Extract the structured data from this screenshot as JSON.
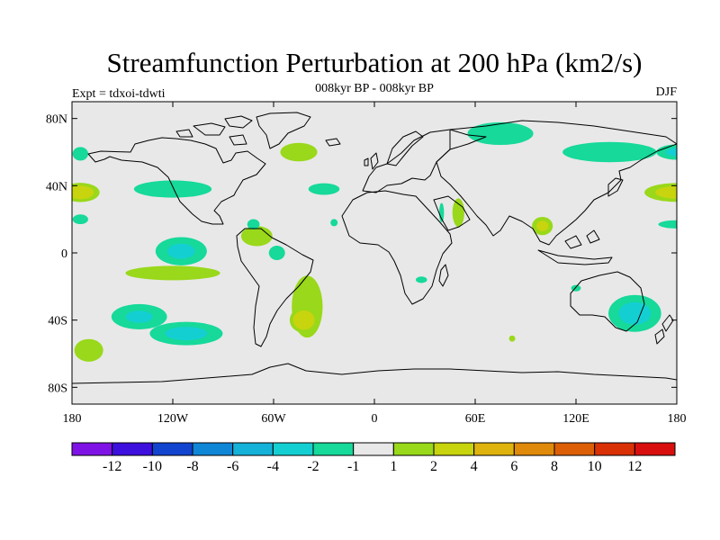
{
  "header": {
    "title": "Streamfunction Perturbation at 200 hPa (km2/s)",
    "subtitle": "008kyr BP - 008kyr BP",
    "left_label": "Expt = tdxoi-tdwti",
    "right_label": "DJF"
  },
  "map": {
    "projection": "cylindrical-equidistant",
    "lon_range": [
      -180,
      180
    ],
    "lat_range": [
      -90,
      90
    ],
    "background_color": "#e8e8e8",
    "lat_ticks": [
      {
        "value": 80,
        "label": "80N"
      },
      {
        "value": 40,
        "label": "40N"
      },
      {
        "value": 0,
        "label": "0"
      },
      {
        "value": -40,
        "label": "40S"
      },
      {
        "value": -80,
        "label": "80S"
      }
    ],
    "lon_ticks": [
      {
        "value": -180,
        "label": "180"
      },
      {
        "value": -120,
        "label": "120W"
      },
      {
        "value": -60,
        "label": "60W"
      },
      {
        "value": 0,
        "label": "0"
      },
      {
        "value": 60,
        "label": "60E"
      },
      {
        "value": 120,
        "label": "120E"
      },
      {
        "value": 180,
        "label": "180"
      }
    ],
    "anomalies": [
      {
        "lon": -140,
        "lat": -38,
        "rlon": 22,
        "rlat": 10,
        "value": -2.3
      },
      {
        "lon": -112,
        "lat": -48,
        "rlon": 28,
        "rlat": 9,
        "value": -2.5
      },
      {
        "lon": -115,
        "lat": 1,
        "rlon": 20,
        "rlat": 11,
        "value": -2.4
      },
      {
        "lon": -120,
        "lat": 38,
        "rlon": 36,
        "rlat": 8,
        "value": -1.7
      },
      {
        "lon": -175,
        "lat": 36,
        "rlon": 14,
        "rlat": 7,
        "value": 3.0
      },
      {
        "lon": -120,
        "lat": -12,
        "rlon": 46,
        "rlat": 7,
        "value": 1.6
      },
      {
        "lon": -170,
        "lat": -58,
        "rlon": 14,
        "rlat": 11,
        "value": 1.6
      },
      {
        "lon": -175,
        "lat": 20,
        "rlon": 8,
        "rlat": 5,
        "value": -1.5
      },
      {
        "lon": -175,
        "lat": 59,
        "rlon": 8,
        "rlat": 7,
        "value": -1.5
      },
      {
        "lon": -70,
        "lat": 10,
        "rlon": 14,
        "rlat": 9,
        "value": 1.8
      },
      {
        "lon": -72,
        "lat": 17,
        "rlon": 6,
        "rlat": 5,
        "value": -1.6
      },
      {
        "lon": -58,
        "lat": 0,
        "rlon": 9,
        "rlat": 8,
        "value": -1.4
      },
      {
        "lon": -40,
        "lat": -32,
        "rlon": 13,
        "rlat": 26,
        "value": 2.0
      },
      {
        "lon": -42,
        "lat": -40,
        "rlon": 10,
        "rlat": 9,
        "value": 3.4
      },
      {
        "lon": -45,
        "lat": 60,
        "rlon": 18,
        "rlat": 9,
        "value": 1.6
      },
      {
        "lon": -30,
        "lat": 38,
        "rlon": 16,
        "rlat": 6,
        "value": -1.5
      },
      {
        "lon": -24,
        "lat": 18,
        "rlon": 4,
        "rlat": 4,
        "value": -1.4
      },
      {
        "lon": 28,
        "lat": -16,
        "rlon": 7,
        "rlat": 4,
        "value": -1.3
      },
      {
        "lon": 50,
        "lat": 24,
        "rlon": 5,
        "rlat": 12,
        "value": 2.0
      },
      {
        "lon": 40,
        "lat": 24,
        "rlon": 3,
        "rlat": 12,
        "value": -1.3
      },
      {
        "lon": 82,
        "lat": -51,
        "rlon": 3,
        "rlat": 3,
        "value": 1.6
      },
      {
        "lon": 100,
        "lat": 16,
        "rlon": 8,
        "rlat": 7,
        "value": 2.5
      },
      {
        "lon": 120,
        "lat": -21,
        "rlon": 6,
        "rlat": 4,
        "value": -1.3
      },
      {
        "lon": 155,
        "lat": -36,
        "rlon": 20,
        "rlat": 14,
        "value": -2.6
      },
      {
        "lon": 140,
        "lat": 60,
        "rlon": 42,
        "rlat": 9,
        "value": -1.8
      },
      {
        "lon": 180,
        "lat": 60,
        "rlon": 16,
        "rlat": 6,
        "value": -2.4
      },
      {
        "lon": 180,
        "lat": 36,
        "rlon": 24,
        "rlat": 7,
        "value": 2.8
      },
      {
        "lon": 180,
        "lat": 17,
        "rlon": 18,
        "rlat": 4,
        "value": -1.6
      },
      {
        "lon": 75,
        "lat": 71,
        "rlon": 32,
        "rlat": 11,
        "value": -1.6
      }
    ]
  },
  "colorbar": {
    "colors": [
      "#7f13e6",
      "#3d10de",
      "#1244cf",
      "#0f86d6",
      "#14b1d8",
      "#14cfd2",
      "#16d99a",
      "#e8e8e8",
      "#99d81a",
      "#c7d40e",
      "#dfb30d",
      "#df8a0a",
      "#dc5f08",
      "#d93005",
      "#d90f0f"
    ],
    "ticks": [
      {
        "index": 1,
        "label": "-12"
      },
      {
        "index": 2,
        "label": "-10"
      },
      {
        "index": 3,
        "label": "-8"
      },
      {
        "index": 4,
        "label": "-6"
      },
      {
        "index": 5,
        "label": "-4"
      },
      {
        "index": 6,
        "label": "-2"
      },
      {
        "index": 7,
        "label": "-1"
      },
      {
        "index": 8,
        "label": "1"
      },
      {
        "index": 9,
        "label": "2"
      },
      {
        "index": 10,
        "label": "4"
      },
      {
        "index": 11,
        "label": "6"
      },
      {
        "index": 12,
        "label": "8"
      },
      {
        "index": 13,
        "label": "10"
      },
      {
        "index": 14,
        "label": "12"
      }
    ],
    "levels": [
      -12,
      -10,
      -8,
      -6,
      -4,
      -2,
      -1,
      1,
      2,
      4,
      6,
      8,
      10,
      12
    ]
  }
}
